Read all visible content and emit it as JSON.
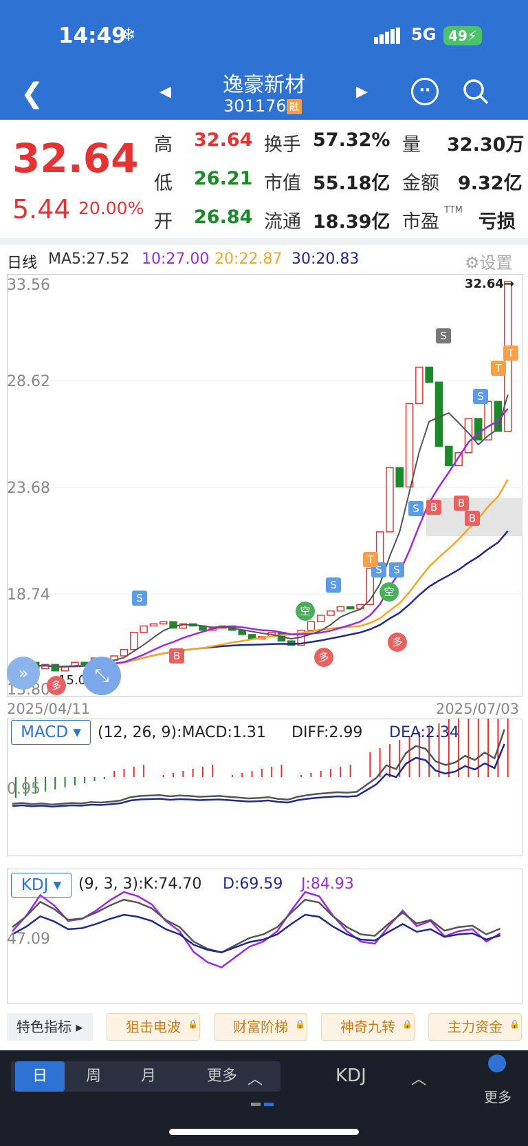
{
  "status": {
    "time": "14:49",
    "network": "5G",
    "battery": "49"
  },
  "header": {
    "name": "逸豪新材",
    "code": "301176",
    "tag": "融"
  },
  "quote": {
    "price": "32.64",
    "change": "5.44",
    "pct": "20.00%",
    "rows": [
      [
        "高",
        "32.64",
        "换手",
        "57.32%",
        "量",
        "32.30万"
      ],
      [
        "低",
        "26.21",
        "市值",
        "55.18亿",
        "金额",
        "9.32亿"
      ],
      [
        "开",
        "26.84",
        "流通",
        "18.39亿",
        "市盈",
        "亏损"
      ]
    ],
    "ttm": "TTM"
  },
  "ma": {
    "label": "日线",
    "ma5": "MA5:27.52",
    "ma10": "10:27.00",
    "ma20": "20:22.87",
    "ma30": "30:20.83",
    "settings": "设置"
  },
  "axis": {
    "y1": "33.56",
    "y2": "28.62",
    "y3": "23.68",
    "y4": "18.74",
    "y5": "13.80",
    "low_mark": "15.03",
    "high_mark": "32.64→",
    "date_start": "2025/04/11",
    "date_end": "2025/07/03"
  },
  "macd": {
    "name": "MACD",
    "params": "(12, 26, 9):MACD:1.31",
    "diff": "DIFF:2.99",
    "dea": "DEA:2.34",
    "level": "0.95"
  },
  "kdj": {
    "name": "KDJ",
    "params": "(9, 3, 3):K:74.70",
    "d": "D:69.59",
    "j": "J:84.93",
    "level": "47.09"
  },
  "features": {
    "first": "特色指标",
    "items": [
      "狙击电波",
      "财富阶梯",
      "神奇九转",
      "主力资金"
    ]
  },
  "bottom": {
    "tabs": [
      "日",
      "周",
      "月",
      "更多"
    ],
    "indicator": "KDJ",
    "more": "更多"
  },
  "signals": {
    "s": "S",
    "b": "B",
    "t": "T",
    "kong": "空",
    "duo": "多"
  },
  "colors": {
    "up": "#e53333",
    "down": "#1a8a2a",
    "ma5": "#555555",
    "ma10": "#9b2be0",
    "ma20": "#f5a623",
    "ma30": "#1f2a8c"
  },
  "chart_data": {
    "type": "candlestick",
    "xlabel": "",
    "ylabel": "",
    "xrange": [
      "2025/04/11",
      "2025/07/03"
    ],
    "ylim": [
      13.8,
      33.56
    ],
    "last_close": 32.64,
    "macd_value": 1.31,
    "diff": 2.99,
    "dea": 2.34,
    "k": 74.7,
    "d": 69.59,
    "j": 84.93
  }
}
